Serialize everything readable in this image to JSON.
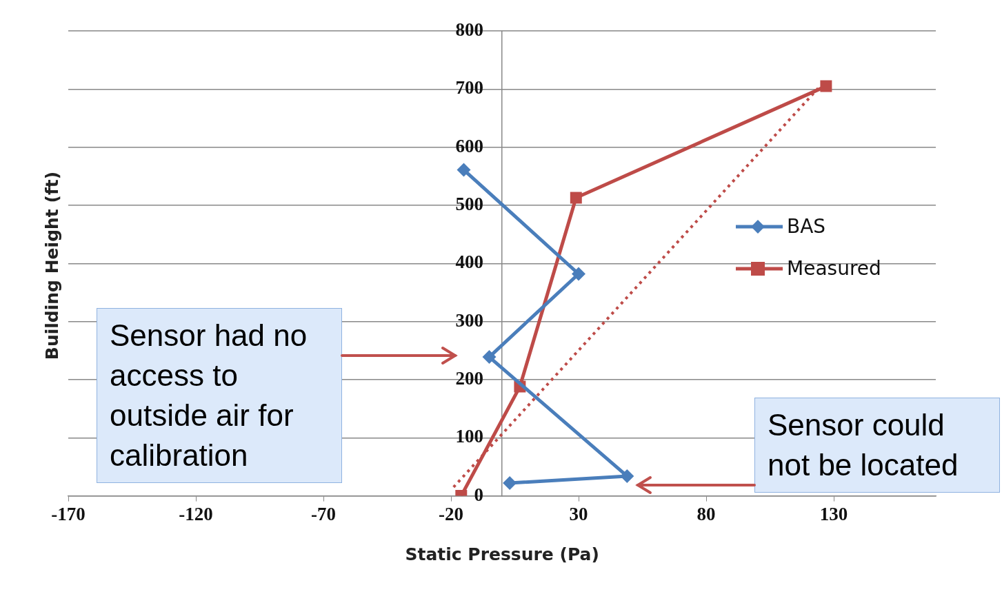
{
  "chart_data": {
    "type": "line",
    "xlabel": "Static Pressure (Pa)",
    "ylabel": "Building Height (ft)",
    "xlim": [
      -170,
      170
    ],
    "xticks": [
      -170,
      -120,
      -70,
      -20,
      30,
      80,
      130
    ],
    "ylim": [
      0,
      800
    ],
    "yticks": [
      0,
      100,
      200,
      300,
      400,
      500,
      600,
      700,
      800
    ],
    "grid": "y",
    "legend": "right",
    "line_style": "solid",
    "series": [
      {
        "name": "BAS",
        "color": "#4a7ebb",
        "marker": "diamond",
        "x": [
          -15,
          30,
          -5,
          49,
          3
        ],
        "values": [
          561,
          382,
          239,
          34,
          22
        ]
      },
      {
        "name": "Measured",
        "color": "#be4b48",
        "marker": "square",
        "x": [
          -16,
          7,
          29,
          127
        ],
        "values": [
          0,
          188,
          513,
          705
        ]
      },
      {
        "color": "#be4b48",
        "marker": "none",
        "line_style": "dotted",
        "x": [
          -19,
          124
        ],
        "values": [
          15,
          702
        ]
      }
    ],
    "annotations": [
      "Sensor had no access to outside air for calibration",
      "Sensor could not be located"
    ]
  }
}
